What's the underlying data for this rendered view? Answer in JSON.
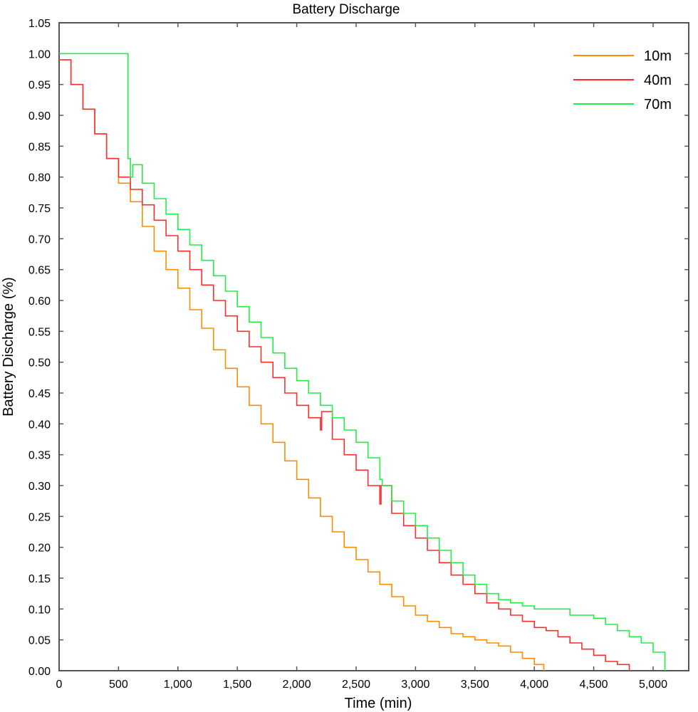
{
  "chart_data": {
    "type": "line",
    "title": "Battery Discharge",
    "xlabel": "Time (min)",
    "ylabel": "Battery Discharge (%)",
    "xlim": [
      0,
      5300
    ],
    "ylim": [
      0,
      1.05
    ],
    "x_ticks": [
      0,
      500,
      1000,
      1500,
      2000,
      2500,
      3000,
      3500,
      4000,
      4500,
      5000
    ],
    "x_tick_labels": [
      "0",
      "500",
      "1,000",
      "1,500",
      "2,000",
      "2,500",
      "3,000",
      "3,500",
      "4,000",
      "4,500",
      "5,000"
    ],
    "y_ticks": [
      0,
      0.05,
      0.1,
      0.15,
      0.2,
      0.25,
      0.3,
      0.35,
      0.4,
      0.45,
      0.5,
      0.55,
      0.6,
      0.65,
      0.7,
      0.75,
      0.8,
      0.85,
      0.9,
      0.95,
      1.0,
      1.05
    ],
    "y_tick_labels": [
      "0.00",
      "0.05",
      "0.10",
      "0.15",
      "0.20",
      "0.25",
      "0.30",
      "0.35",
      "0.40",
      "0.45",
      "0.50",
      "0.55",
      "0.60",
      "0.65",
      "0.70",
      "0.75",
      "0.80",
      "0.85",
      "0.90",
      "0.95",
      "1.00",
      "1.05"
    ],
    "grid": false,
    "legend": "top-right",
    "step": true,
    "series": [
      {
        "name": "10m",
        "color": "#ff8c00",
        "x": [
          0,
          100,
          200,
          300,
          400,
          500,
          600,
          700,
          800,
          900,
          1000,
          1100,
          1200,
          1300,
          1400,
          1500,
          1600,
          1700,
          1800,
          1900,
          2000,
          2100,
          2200,
          2300,
          2400,
          2500,
          2600,
          2700,
          2800,
          2900,
          3000,
          3100,
          3200,
          3300,
          3400,
          3500,
          3600,
          3700,
          3800,
          3900,
          4000,
          4080
        ],
        "y": [
          0.99,
          0.95,
          0.91,
          0.87,
          0.83,
          0.79,
          0.76,
          0.72,
          0.68,
          0.65,
          0.62,
          0.585,
          0.555,
          0.52,
          0.49,
          0.46,
          0.43,
          0.4,
          0.37,
          0.34,
          0.31,
          0.28,
          0.25,
          0.225,
          0.2,
          0.18,
          0.16,
          0.14,
          0.12,
          0.105,
          0.09,
          0.08,
          0.07,
          0.06,
          0.055,
          0.05,
          0.045,
          0.04,
          0.03,
          0.02,
          0.01,
          0.0
        ]
      },
      {
        "name": "40m",
        "color": "#ff2d2d",
        "x": [
          0,
          100,
          200,
          300,
          400,
          500,
          600,
          700,
          800,
          900,
          1000,
          1100,
          1200,
          1300,
          1400,
          1500,
          1600,
          1700,
          1800,
          1900,
          2000,
          2100,
          2200,
          2210,
          2300,
          2400,
          2500,
          2600,
          2700,
          2710,
          2800,
          2900,
          3000,
          3100,
          3200,
          3300,
          3400,
          3500,
          3600,
          3700,
          3800,
          3900,
          4000,
          4100,
          4200,
          4300,
          4400,
          4500,
          4600,
          4700,
          4800
        ],
        "y": [
          0.99,
          0.95,
          0.91,
          0.87,
          0.83,
          0.8,
          0.78,
          0.755,
          0.73,
          0.705,
          0.68,
          0.65,
          0.625,
          0.6,
          0.575,
          0.55,
          0.525,
          0.5,
          0.475,
          0.45,
          0.43,
          0.41,
          0.39,
          0.42,
          0.375,
          0.35,
          0.325,
          0.3,
          0.27,
          0.3,
          0.255,
          0.235,
          0.215,
          0.195,
          0.175,
          0.155,
          0.14,
          0.125,
          0.11,
          0.1,
          0.09,
          0.08,
          0.07,
          0.065,
          0.055,
          0.045,
          0.035,
          0.025,
          0.015,
          0.01,
          0.0
        ]
      },
      {
        "name": "70m",
        "color": "#22ee44",
        "x": [
          0,
          580,
          600,
          620,
          700,
          800,
          900,
          1000,
          1100,
          1200,
          1300,
          1400,
          1500,
          1600,
          1700,
          1800,
          1900,
          2000,
          2100,
          2200,
          2300,
          2400,
          2500,
          2600,
          2700,
          2720,
          2800,
          2900,
          3000,
          3100,
          3200,
          3300,
          3400,
          3500,
          3600,
          3700,
          3800,
          3900,
          4000,
          4100,
          4200,
          4300,
          4400,
          4500,
          4600,
          4700,
          4800,
          4900,
          5000,
          5100
        ],
        "y": [
          1.0,
          0.83,
          0.8,
          0.82,
          0.79,
          0.765,
          0.74,
          0.715,
          0.69,
          0.665,
          0.64,
          0.615,
          0.59,
          0.565,
          0.54,
          0.515,
          0.49,
          0.47,
          0.45,
          0.43,
          0.41,
          0.39,
          0.37,
          0.345,
          0.31,
          0.3,
          0.275,
          0.255,
          0.235,
          0.215,
          0.195,
          0.175,
          0.155,
          0.14,
          0.125,
          0.115,
          0.11,
          0.105,
          0.1,
          0.1,
          0.1,
          0.09,
          0.09,
          0.085,
          0.075,
          0.065,
          0.055,
          0.045,
          0.03,
          0.0
        ]
      }
    ]
  }
}
